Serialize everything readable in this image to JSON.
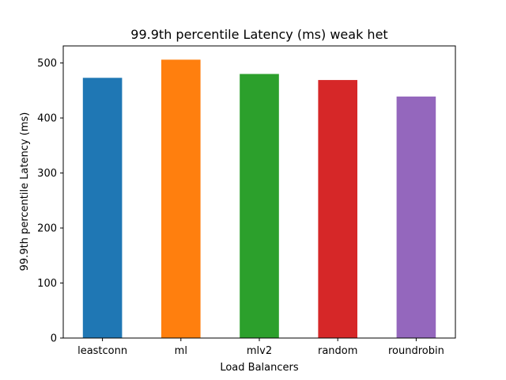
{
  "chart_data": {
    "type": "bar",
    "title": "99.9th percentile Latency (ms) weak het",
    "xlabel": "Load Balancers",
    "ylabel": "99.9th percentile Latency (ms)",
    "categories": [
      "leastconn",
      "ml",
      "mlv2",
      "random",
      "roundrobin"
    ],
    "values": [
      473,
      506,
      480,
      469,
      439
    ],
    "colors": [
      "#1f77b4",
      "#ff7f0e",
      "#2ca02c",
      "#d62728",
      "#9467bd"
    ],
    "ylim": [
      0,
      531
    ],
    "yticks": [
      0,
      100,
      200,
      300,
      400,
      500
    ],
    "grid": false,
    "legend": "none"
  }
}
